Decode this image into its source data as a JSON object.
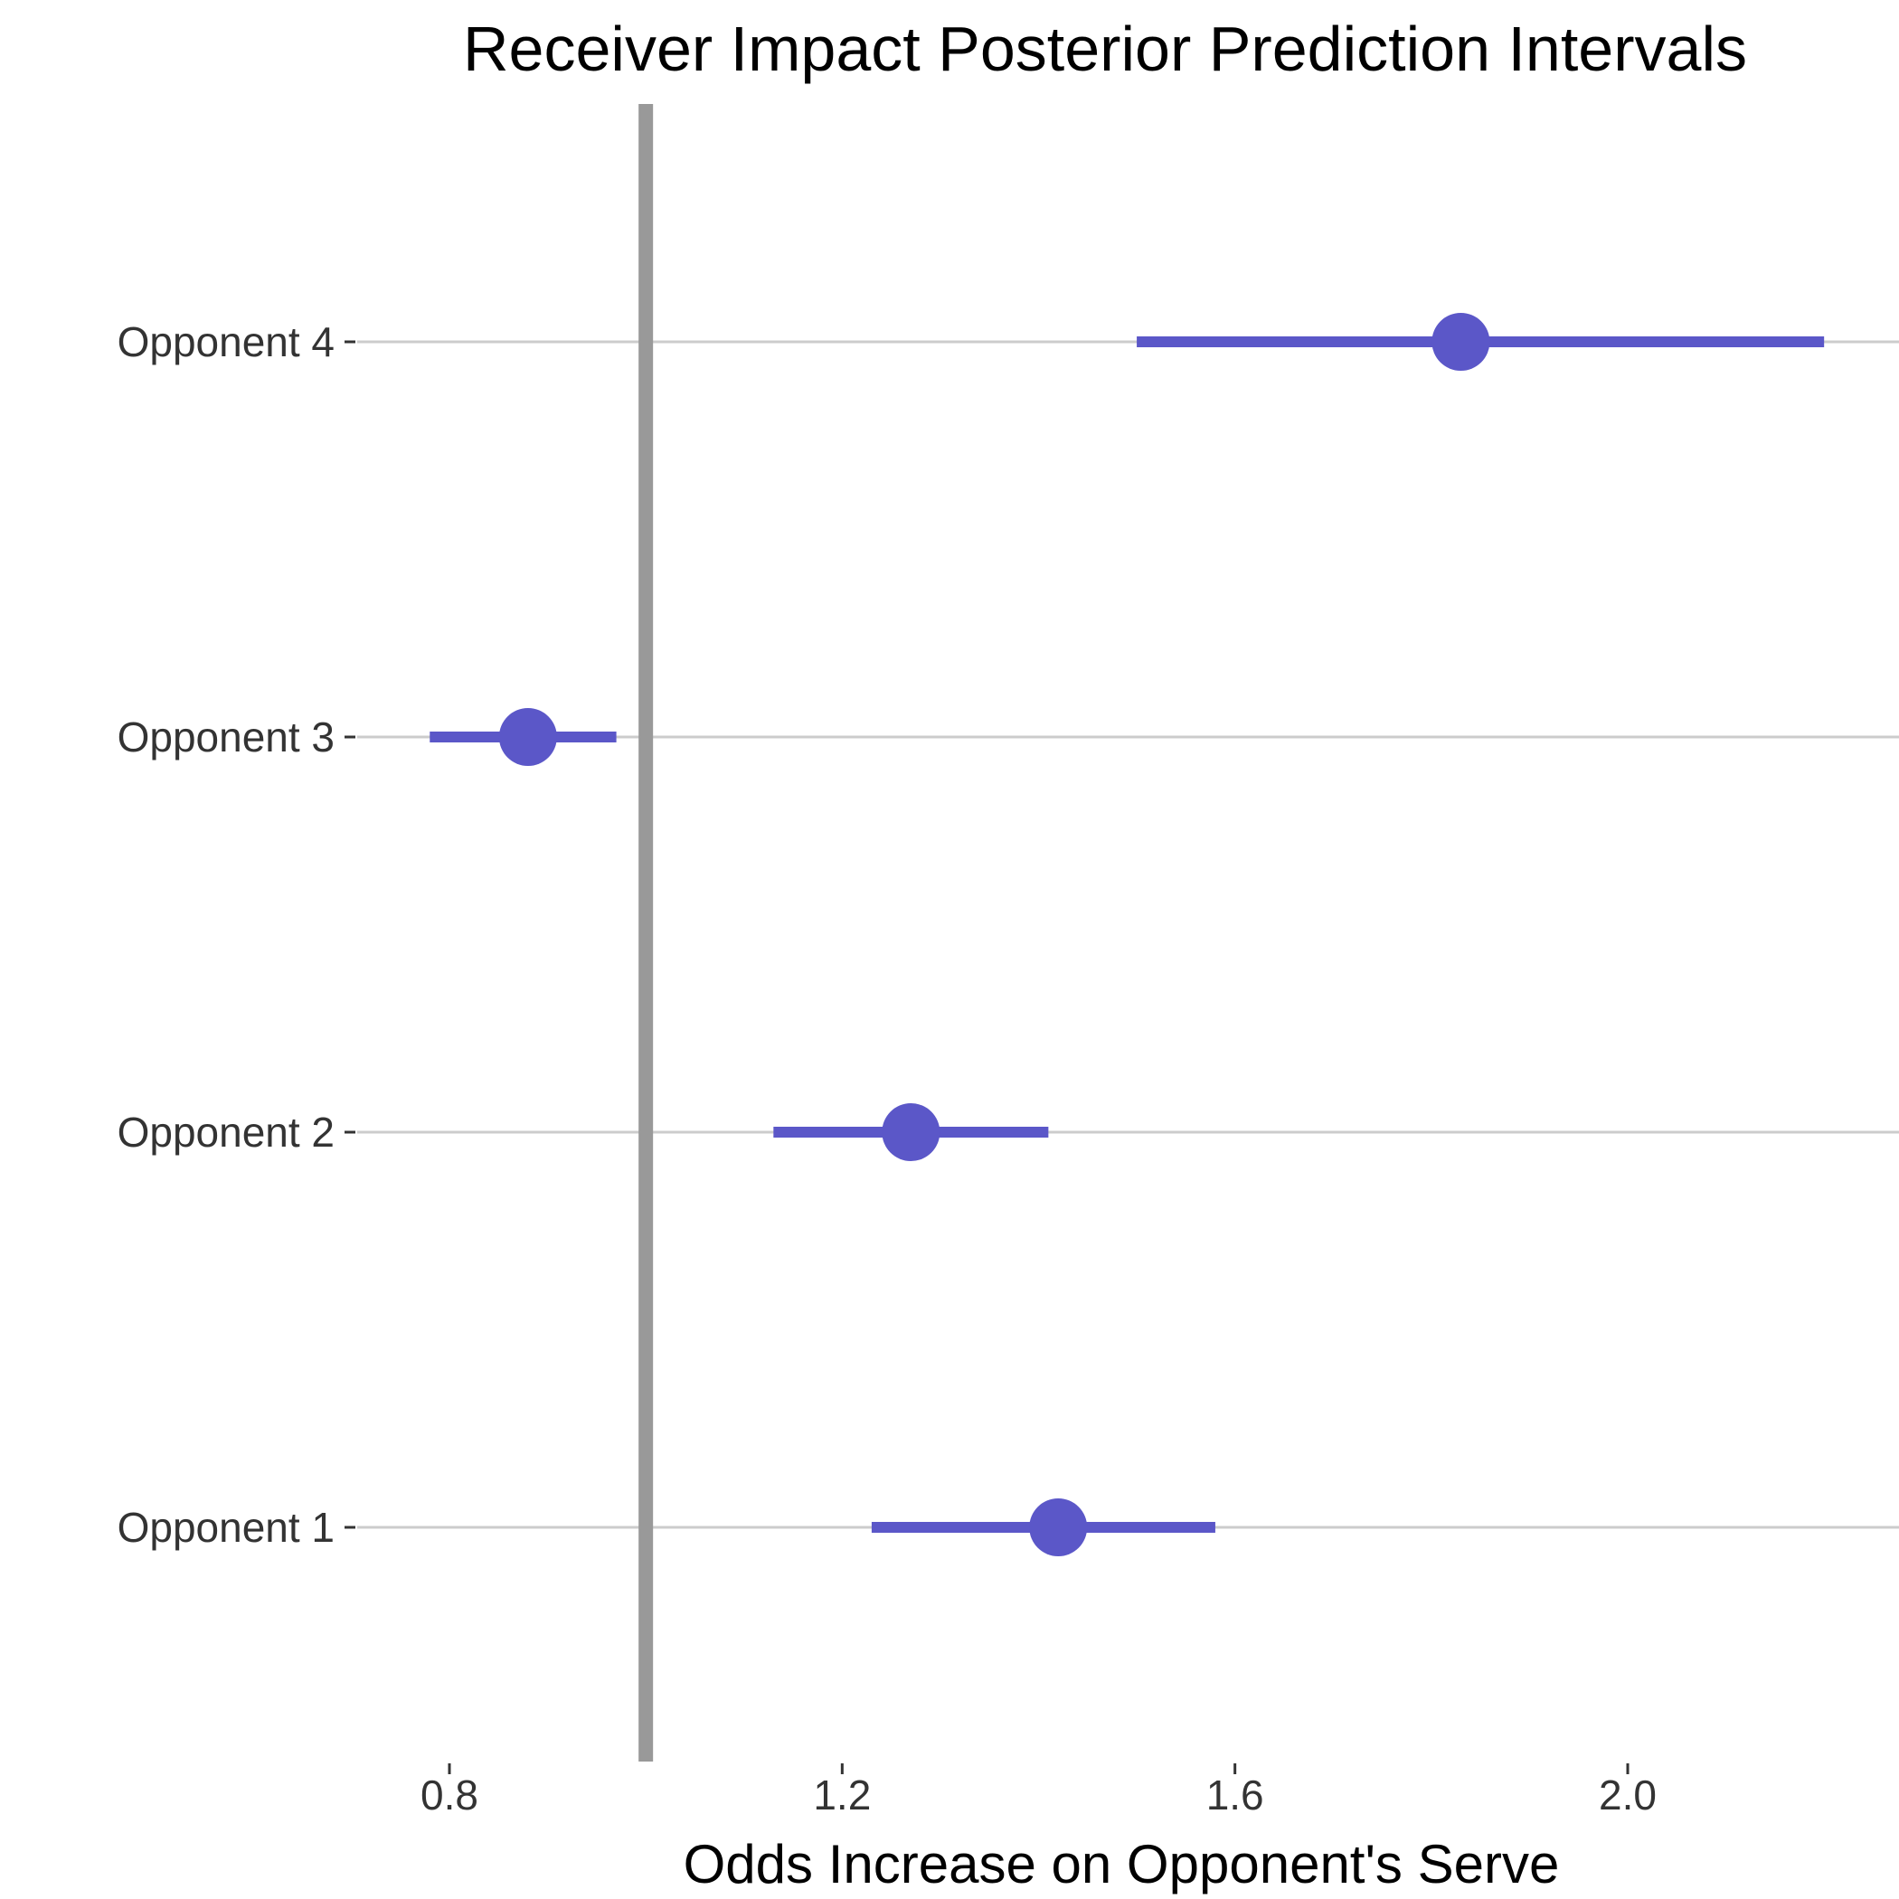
{
  "chart_data": {
    "type": "interval",
    "title": "Receiver Impact Posterior Prediction Intervals",
    "xlabel": "Odds Increase on Opponent's Serve",
    "ylabel": "",
    "xlim": [
      0.7,
      2.25
    ],
    "x_ticks": [
      "0.8",
      "1.2",
      "1.6",
      "2.0"
    ],
    "reference_line": 1.0,
    "grid": "horizontal",
    "categories": [
      "Opponent 1",
      "Opponent 2",
      "Opponent 3",
      "Opponent 4"
    ],
    "series": [
      {
        "values": [
          {
            "category": "Opponent 1",
            "estimate": 1.42,
            "lower": 1.23,
            "upper": 1.58
          },
          {
            "category": "Opponent 2",
            "estimate": 1.27,
            "lower": 1.13,
            "upper": 1.41
          },
          {
            "category": "Opponent 3",
            "estimate": 0.88,
            "lower": 0.78,
            "upper": 0.97
          },
          {
            "category": "Opponent 4",
            "estimate": 1.83,
            "lower": 1.5,
            "upper": 2.2
          }
        ]
      }
    ],
    "colors": {
      "interval": "#5b57c8",
      "reference": "#999999",
      "grid": "#cccccc",
      "tick": "#333333"
    }
  }
}
